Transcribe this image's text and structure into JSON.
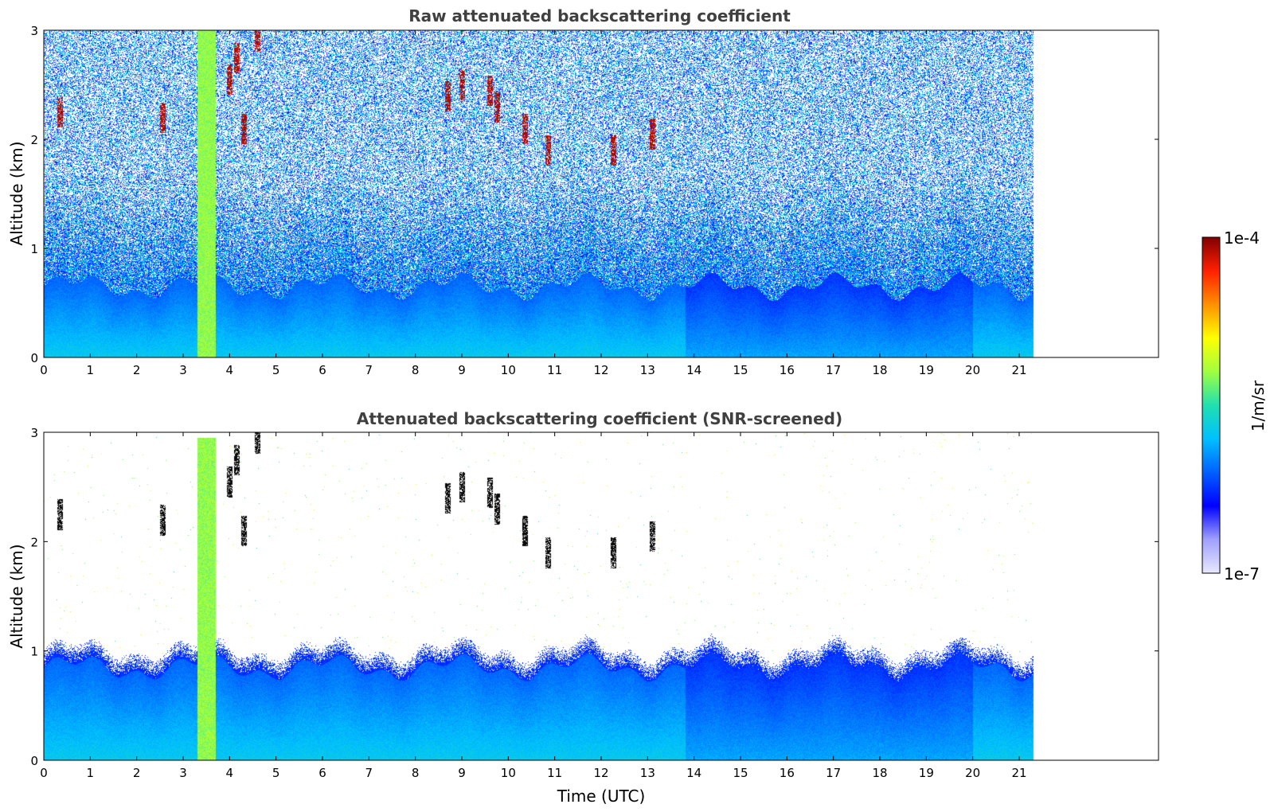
{
  "chart_data": [
    {
      "type": "heatmap",
      "title": "Raw attenuated backscattering coefficient",
      "xlabel": "",
      "ylabel": "Altitude (km)",
      "xlim": [
        0,
        24
      ],
      "ylim": [
        0,
        3
      ],
      "x_ticks": [
        "0",
        "1",
        "2",
        "3",
        "4",
        "5",
        "6",
        "7",
        "8",
        "9",
        "10",
        "11",
        "12",
        "13",
        "14",
        "15",
        "16",
        "17",
        "18",
        "19",
        "20",
        "21"
      ],
      "y_ticks": [
        "0",
        "1",
        "2",
        "3"
      ],
      "data_time_range": [
        0,
        21.3
      ],
      "features": {
        "boundary_layer_top_km": 0.65,
        "noise_onset_km": 0.9,
        "precip_column": {
          "start": 3.3,
          "end": 3.7
        },
        "clouds": [
          {
            "time": 0.35,
            "alt": 2.25
          },
          {
            "time": 2.55,
            "alt": 2.2
          },
          {
            "time": 4.0,
            "alt": 2.55
          },
          {
            "time": 4.15,
            "alt": 2.75
          },
          {
            "time": 4.3,
            "alt": 2.1
          },
          {
            "time": 4.6,
            "alt": 2.95
          },
          {
            "time": 8.7,
            "alt": 2.4
          },
          {
            "time": 9.0,
            "alt": 2.5
          },
          {
            "time": 9.6,
            "alt": 2.45
          },
          {
            "time": 9.75,
            "alt": 2.3
          },
          {
            "time": 10.35,
            "alt": 2.1
          },
          {
            "time": 10.85,
            "alt": 1.9
          },
          {
            "time": 12.25,
            "alt": 1.9
          },
          {
            "time": 13.1,
            "alt": 2.05
          }
        ]
      }
    },
    {
      "type": "heatmap",
      "title": "Attenuated backscattering coefficient (SNR-screened)",
      "xlabel": "Time (UTC)",
      "ylabel": "Altitude (km)",
      "xlim": [
        0,
        24
      ],
      "ylim": [
        0,
        3
      ],
      "x_ticks": [
        "0",
        "1",
        "2",
        "3",
        "4",
        "5",
        "6",
        "7",
        "8",
        "9",
        "10",
        "11",
        "12",
        "13",
        "14",
        "15",
        "16",
        "17",
        "18",
        "19",
        "20",
        "21"
      ],
      "y_ticks": [
        "0",
        "1",
        "2",
        "3"
      ],
      "data_time_range": [
        0,
        21.3
      ],
      "features": {
        "boundary_layer_top_km": 0.85,
        "precip_column": {
          "start": 3.3,
          "end": 3.7
        },
        "clouds": [
          {
            "time": 0.35,
            "alt": 2.25
          },
          {
            "time": 2.55,
            "alt": 2.2
          },
          {
            "time": 4.0,
            "alt": 2.55
          },
          {
            "time": 4.15,
            "alt": 2.75
          },
          {
            "time": 4.3,
            "alt": 2.1
          },
          {
            "time": 4.6,
            "alt": 2.95
          },
          {
            "time": 8.7,
            "alt": 2.4
          },
          {
            "time": 9.0,
            "alt": 2.5
          },
          {
            "time": 9.6,
            "alt": 2.45
          },
          {
            "time": 9.75,
            "alt": 2.3
          },
          {
            "time": 10.35,
            "alt": 2.1
          },
          {
            "time": 10.85,
            "alt": 1.9
          },
          {
            "time": 12.25,
            "alt": 1.9
          },
          {
            "time": 13.1,
            "alt": 2.05
          }
        ]
      }
    }
  ],
  "colorbar": {
    "label": "1/m/sr",
    "max_label": "1e-4",
    "min_label": "1e-7",
    "scale": "log",
    "range": [
      1e-07,
      0.0001
    ],
    "colors": [
      "#e8e8ff",
      "#a0a0ff",
      "#0000ff",
      "#0060ff",
      "#00c0ff",
      "#20e0b0",
      "#a0ff40",
      "#ffff00",
      "#ff9000",
      "#ff2000",
      "#800000"
    ]
  }
}
